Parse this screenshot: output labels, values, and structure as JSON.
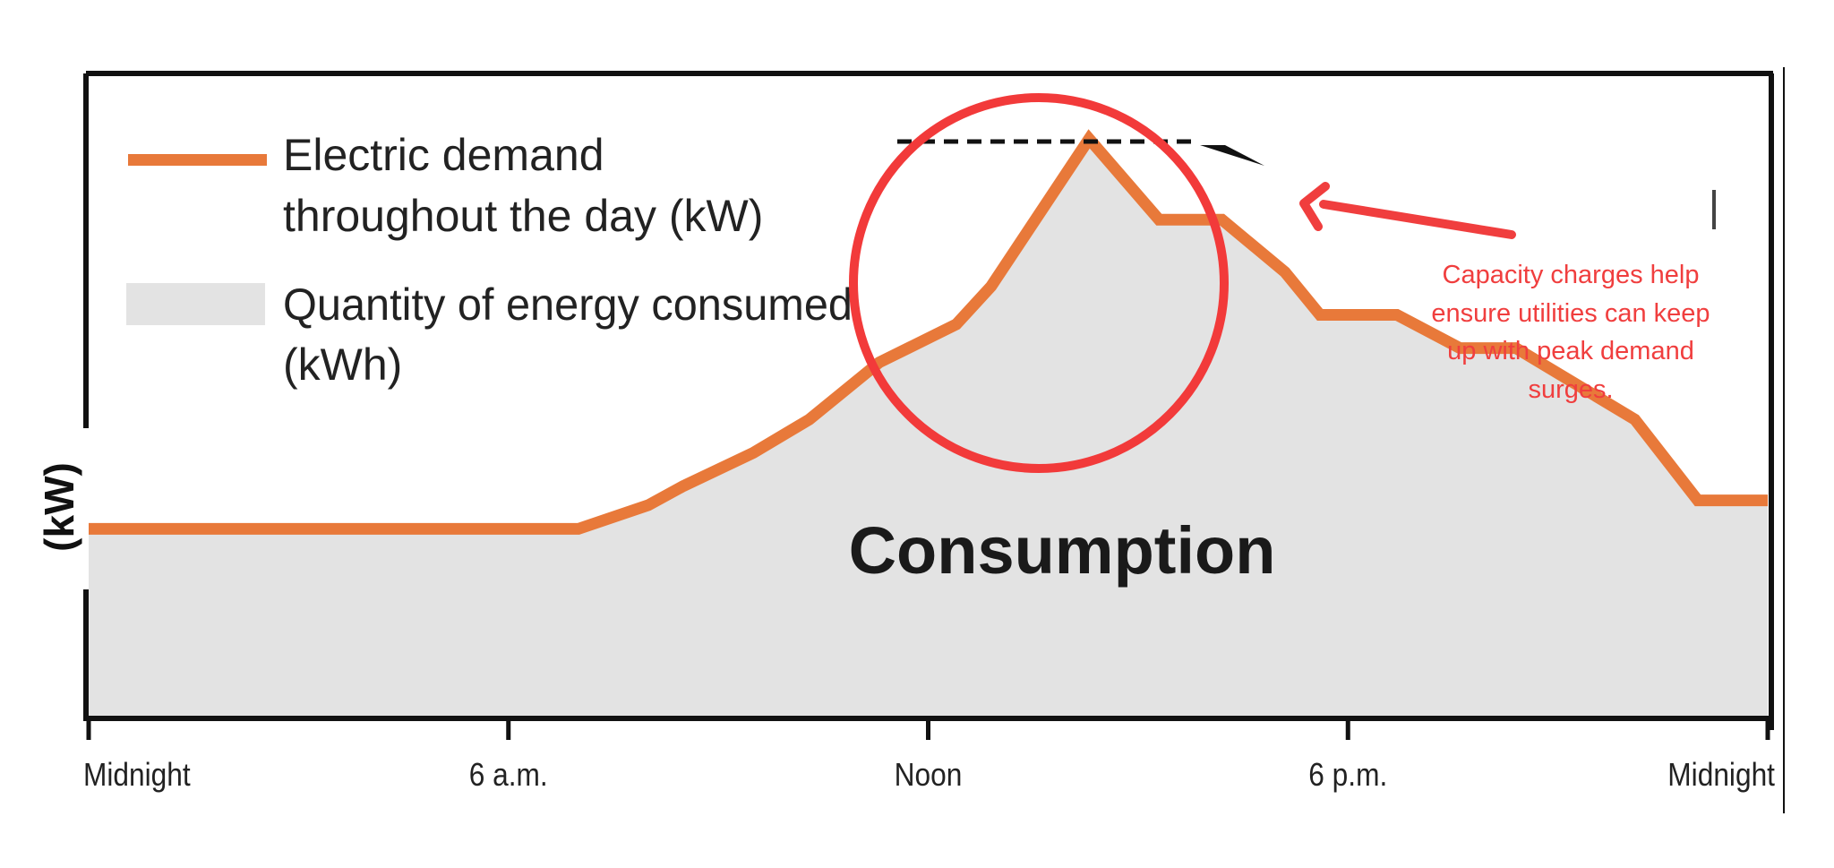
{
  "chart_data": {
    "type": "area",
    "x_axis": {
      "ticks": [
        {
          "label": "Midnight",
          "hour": 0
        },
        {
          "label": "6 a.m.",
          "hour": 6
        },
        {
          "label": "Noon",
          "hour": 12
        },
        {
          "label": "6 p.m.",
          "hour": 18
        },
        {
          "label": "Midnight",
          "hour": 24
        }
      ],
      "range": [
        0,
        24
      ]
    },
    "y_axis": {
      "label": "(kW)",
      "range": [
        0,
        100
      ]
    },
    "series": [
      {
        "name": "Electric demand throughout the day (kW)",
        "color": "#e8793a",
        "fill": "#e3e3e3",
        "points": [
          {
            "x": 0,
            "y": 18
          },
          {
            "x": 7,
            "y": 18
          },
          {
            "x": 8,
            "y": 23
          },
          {
            "x": 8.5,
            "y": 27
          },
          {
            "x": 9.5,
            "y": 34
          },
          {
            "x": 10.3,
            "y": 41
          },
          {
            "x": 11.3,
            "y": 53
          },
          {
            "x": 12.4,
            "y": 61
          },
          {
            "x": 12.9,
            "y": 69
          },
          {
            "x": 14.3,
            "y": 100
          },
          {
            "x": 15.3,
            "y": 83
          },
          {
            "x": 16.2,
            "y": 83
          },
          {
            "x": 17.1,
            "y": 72
          },
          {
            "x": 17.6,
            "y": 63
          },
          {
            "x": 18.7,
            "y": 63
          },
          {
            "x": 19.6,
            "y": 56
          },
          {
            "x": 20.4,
            "y": 56
          },
          {
            "x": 22.1,
            "y": 41
          },
          {
            "x": 23.0,
            "y": 24
          },
          {
            "x": 24,
            "y": 24
          }
        ]
      }
    ],
    "legend": [
      {
        "text_line1": "Electric demand",
        "text_line2": "throughout the day (kW)",
        "swatch": "line"
      },
      {
        "text_line1": "Quantity of energy consumed",
        "text_line2": "(kWh)",
        "swatch": "area"
      }
    ],
    "area_label": "Consumption",
    "peak_marker": "dashed line at peak demand",
    "annotation": {
      "lines": [
        "Capacity charges help",
        "ensure utilities can keep",
        "up with peak demand",
        "surges."
      ],
      "color": "#f03e3e"
    }
  }
}
